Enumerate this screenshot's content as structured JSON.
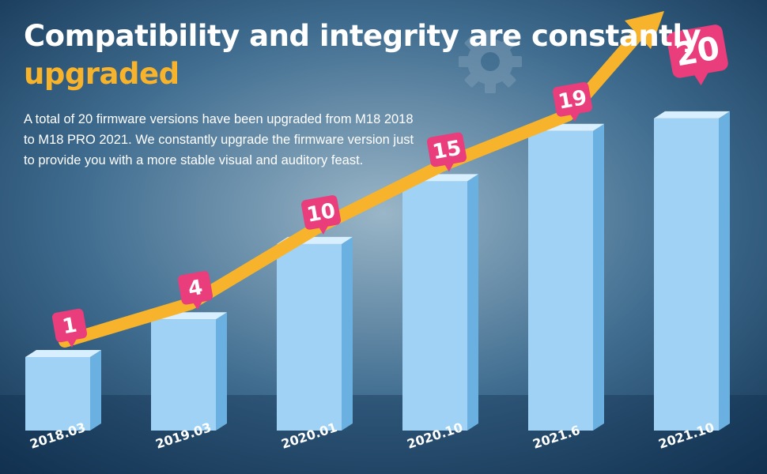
{
  "header": {
    "title_main": "Compatibility and integrity are constantly",
    "title_highlight": "upgraded",
    "description": "A total of 20 firmware versions have been upgraded from M18 2018 to M18 PRO 2021. We constantly upgrade the firmware version just to provide you with a more stable visual and auditory feast."
  },
  "colors": {
    "bar_front": "#9fd2f4",
    "bar_side": "#6ab0e0",
    "bar_top": "#d8efff",
    "arrow": "#f7b32b",
    "badge": "#e93d7c",
    "highlight": "#f7b32b",
    "background": "#0f2f4e"
  },
  "chart_data": {
    "type": "bar",
    "categories": [
      "2018.03",
      "2019.03",
      "2020.01",
      "2020.10",
      "2021.6",
      "2021.10"
    ],
    "values": [
      1,
      4,
      10,
      15,
      19,
      20
    ],
    "trend_arrow": true
  }
}
